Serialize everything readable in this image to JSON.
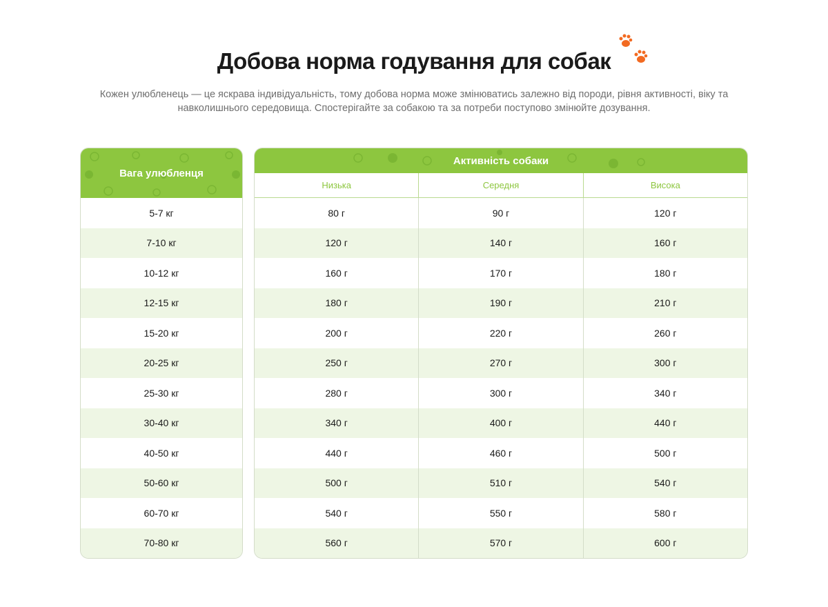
{
  "title": "Добова норма годування для собак",
  "subtitle": "Кожен улюбленець — це яскрава індивідуальність, тому добова норма може змінюватись залежно від породи, рівня активності, віку та навколишнього середовища. Спостерігайте за собакою та за потреби поступово змінюйте дозування.",
  "accent": "#8dc63f",
  "paw_color": "#f26a21",
  "weight_header": "Вага улюбленця",
  "activity_header": "Активність собаки",
  "activity_levels": [
    "Низька",
    "Середня",
    "Висока"
  ],
  "rows": [
    {
      "weight": "5-7 кг",
      "values": [
        "80 г",
        "90 г",
        "120 г"
      ]
    },
    {
      "weight": "7-10 кг",
      "values": [
        "120 г",
        "140 г",
        "160 г"
      ]
    },
    {
      "weight": "10-12 кг",
      "values": [
        "160 г",
        "170 г",
        "180 г"
      ]
    },
    {
      "weight": "12-15 кг",
      "values": [
        "180 г",
        "190 г",
        "210 г"
      ]
    },
    {
      "weight": "15-20 кг",
      "values": [
        "200 г",
        "220 г",
        "260 г"
      ]
    },
    {
      "weight": "20-25 кг",
      "values": [
        "250 г",
        "270 г",
        "300 г"
      ]
    },
    {
      "weight": "25-30 кг",
      "values": [
        "280 г",
        "300 г",
        "340 г"
      ]
    },
    {
      "weight": "30-40 кг",
      "values": [
        "340 г",
        "400 г",
        "440 г"
      ]
    },
    {
      "weight": "40-50 кг",
      "values": [
        "440 г",
        "460 г",
        "500 г"
      ]
    },
    {
      "weight": "50-60 кг",
      "values": [
        "500 г",
        "510 г",
        "540 г"
      ]
    },
    {
      "weight": "60-70 кг",
      "values": [
        "540 г",
        "550 г",
        "580 г"
      ]
    },
    {
      "weight": "70-80 кг",
      "values": [
        "560 г",
        "570 г",
        "600 г"
      ]
    }
  ]
}
